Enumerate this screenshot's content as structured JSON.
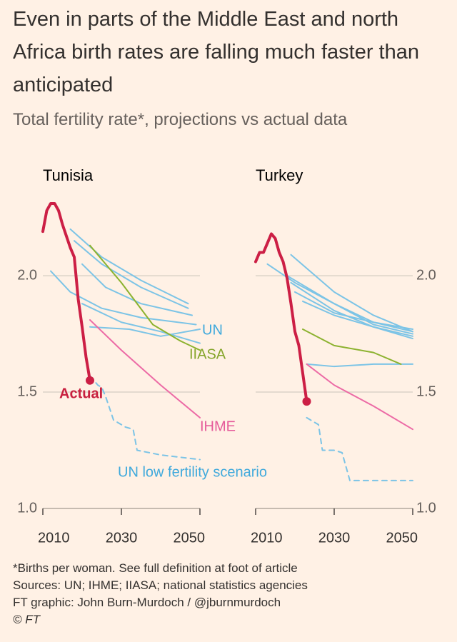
{
  "title": "Even in parts of the Middle East and north Africa birth rates are falling much faster than anticipated",
  "subtitle": "Total fertility rate*, projections vs actual data",
  "notes": [
    "*Births per woman. See full definition at foot of article",
    "Sources: UN; IHME; IIASA; national statistics agencies",
    "FT graphic: John Burn-Murdoch / @jburnmurdoch",
    "© FT"
  ],
  "chart_data": [
    {
      "type": "line",
      "title": "Tunisia",
      "xlim": [
        2010,
        2050
      ],
      "ylim": [
        1.0,
        2.35
      ],
      "xticks": [
        2010,
        2030,
        2050
      ],
      "yticks": [
        {
          "value": 1,
          "label": "1.0"
        },
        1.5,
        {
          "value": 2,
          "label": "2.0"
        }
      ],
      "yaxis_side": "left",
      "grid": true,
      "series": [
        {
          "color": "#7cc4e6",
          "x": [
            2017,
            2025,
            2035,
            2047
          ],
          "values": [
            2.2,
            2.08,
            1.98,
            1.88
          ]
        },
        {
          "color": "#7cc4e6",
          "x": [
            2018,
            2025,
            2035,
            2047
          ],
          "values": [
            2.15,
            2.05,
            1.95,
            1.86
          ]
        },
        {
          "color": "#7cc4e6",
          "x": [
            2012,
            2017,
            2025,
            2035,
            2049
          ],
          "values": [
            2.02,
            1.93,
            1.86,
            1.82,
            1.79
          ]
        },
        {
          "color": "#7cc4e6",
          "x": [
            2020,
            2026,
            2035,
            2048
          ],
          "values": [
            2.05,
            1.95,
            1.88,
            1.83
          ]
        },
        {
          "color": "#7cc4e6",
          "x": [
            2020,
            2030,
            2040,
            2050
          ],
          "values": [
            1.88,
            1.8,
            1.76,
            1.71
          ]
        },
        {
          "name": "UN",
          "color": "#7cc4e6",
          "x": [
            2022,
            2032,
            2040,
            2050
          ],
          "values": [
            1.78,
            1.77,
            1.74,
            1.77
          ]
        },
        {
          "name": "IIASA",
          "color": "#8cb22f",
          "x": [
            2022,
            2030,
            2038,
            2045,
            2050
          ],
          "values": [
            2.13,
            1.97,
            1.79,
            1.72,
            1.68
          ]
        },
        {
          "name": "IHME",
          "color": "#ec6aa5",
          "x": [
            2022,
            2030,
            2040,
            2050
          ],
          "values": [
            1.81,
            1.68,
            1.53,
            1.39
          ]
        },
        {
          "name": "UN low fertility scenario",
          "color": "#7cc4e6",
          "dash": true,
          "x": [
            2022,
            2024,
            2025,
            2026,
            2028,
            2031,
            2033,
            2034,
            2040,
            2050
          ],
          "values": [
            1.57,
            1.53,
            1.52,
            1.48,
            1.38,
            1.35,
            1.34,
            1.25,
            1.23,
            1.21
          ]
        },
        {
          "name": "Actual",
          "color": "#cc1f45",
          "width": 4,
          "x": [
            2010,
            2011,
            2012,
            2013,
            2014,
            2015,
            2017,
            2018,
            2019,
            2020,
            2021,
            2022
          ],
          "values": [
            2.19,
            2.28,
            2.31,
            2.31,
            2.28,
            2.22,
            2.12,
            2.08,
            1.9,
            1.78,
            1.65,
            1.55
          ]
        }
      ]
    },
    {
      "type": "line",
      "title": "Turkey",
      "xlim": [
        2010,
        2050
      ],
      "ylim": [
        1.0,
        2.35
      ],
      "xticks": [
        2010,
        2030,
        2050
      ],
      "yticks": [
        {
          "value": 1,
          "label": "1.0"
        },
        1.5,
        {
          "value": 2,
          "label": "2.0"
        }
      ],
      "yaxis_side": "right",
      "grid": true,
      "series": [
        {
          "color": "#7cc4e6",
          "x": [
            2019,
            2030,
            2040,
            2050
          ],
          "values": [
            2.09,
            1.93,
            1.83,
            1.76
          ]
        },
        {
          "color": "#7cc4e6",
          "x": [
            2013,
            2020,
            2030,
            2040,
            2050
          ],
          "values": [
            2.05,
            1.97,
            1.88,
            1.8,
            1.76
          ]
        },
        {
          "color": "#7cc4e6",
          "x": [
            2018,
            2030,
            2040,
            2050
          ],
          "values": [
            2.0,
            1.88,
            1.79,
            1.75
          ]
        },
        {
          "color": "#7cc4e6",
          "x": [
            2019,
            2030,
            2040,
            2050
          ],
          "values": [
            1.97,
            1.85,
            1.78,
            1.74
          ]
        },
        {
          "color": "#7cc4e6",
          "x": [
            2020,
            2030,
            2040,
            2050
          ],
          "values": [
            1.93,
            1.84,
            1.8,
            1.77
          ]
        },
        {
          "color": "#7cc4e6",
          "x": [
            2022,
            2030,
            2040,
            2050
          ],
          "values": [
            1.89,
            1.83,
            1.78,
            1.73
          ]
        },
        {
          "color": "#7cc4e6",
          "x": [
            2023,
            2030,
            2040,
            2050
          ],
          "values": [
            1.62,
            1.61,
            1.62,
            1.62
          ]
        },
        {
          "color": "#8cb22f",
          "x": [
            2022,
            2030,
            2040,
            2047
          ],
          "values": [
            1.77,
            1.7,
            1.67,
            1.62
          ]
        },
        {
          "color": "#ec6aa5",
          "x": [
            2023,
            2030,
            2040,
            2050
          ],
          "values": [
            1.62,
            1.53,
            1.44,
            1.34
          ]
        },
        {
          "color": "#7cc4e6",
          "dash": true,
          "x": [
            2023,
            2025,
            2026,
            2027,
            2030,
            2032,
            2034,
            2040,
            2050
          ],
          "values": [
            1.39,
            1.37,
            1.36,
            1.25,
            1.25,
            1.24,
            1.12,
            1.12,
            1.12
          ]
        },
        {
          "color": "#cc1f45",
          "width": 4,
          "x": [
            2010,
            2011,
            2012,
            2013,
            2014,
            2015,
            2016,
            2017,
            2018,
            2019,
            2020,
            2021,
            2022,
            2023
          ],
          "values": [
            2.06,
            2.1,
            2.1,
            2.14,
            2.18,
            2.16,
            2.1,
            2.06,
            1.99,
            1.88,
            1.76,
            1.7,
            1.58,
            1.46
          ]
        }
      ]
    }
  ]
}
